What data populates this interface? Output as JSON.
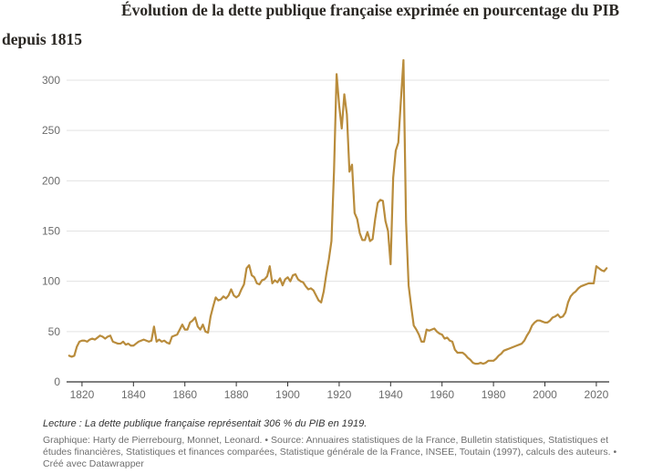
{
  "title": {
    "line1": "Évolution de la dette publique française exprimée en pourcentage du PIB",
    "line2": "depuis 1815"
  },
  "footer": {
    "reading_note": "Lecture : La dette publique française représentait 306 % du PIB en 1919.",
    "source": "Graphique: Harty de Pierrebourg, Monnet, Leonard. • Source: Annuaires statistiques de la France, Bulletin statistiques, Statistiques et études financières, Statistiques et finances comparées, Statistique générale de la France, INSEE, Toutain (1997), calculs des auteurs. • Créé avec Datawrapper"
  },
  "colors": {
    "line": "#b98c3c",
    "grid": "#e3e3e3",
    "axis": "#333333",
    "tick_text": "#6b6b6b"
  },
  "chart_data": {
    "type": "line",
    "title": "Évolution de la dette publique française exprimée en pourcentage du PIB depuis 1815",
    "xlabel": "",
    "ylabel": "",
    "xlim": [
      1814,
      2025
    ],
    "ylim": [
      0,
      300
    ],
    "xticks": [
      1820,
      1840,
      1860,
      1880,
      1900,
      1920,
      1940,
      1960,
      1980,
      2000,
      2020
    ],
    "yticks": [
      0,
      50,
      100,
      150,
      200,
      250,
      300
    ],
    "grid": "horizontal",
    "series": [
      {
        "points": [
          [
            1815,
            26
          ],
          [
            1816,
            25
          ],
          [
            1817,
            26
          ],
          [
            1818,
            35
          ],
          [
            1819,
            40
          ],
          [
            1820,
            41
          ],
          [
            1821,
            41
          ],
          [
            1822,
            40
          ],
          [
            1823,
            42
          ],
          [
            1824,
            43
          ],
          [
            1825,
            42
          ],
          [
            1826,
            44
          ],
          [
            1827,
            46
          ],
          [
            1828,
            45
          ],
          [
            1829,
            43
          ],
          [
            1830,
            45
          ],
          [
            1831,
            46
          ],
          [
            1832,
            40
          ],
          [
            1833,
            39
          ],
          [
            1834,
            38
          ],
          [
            1835,
            38
          ],
          [
            1836,
            40
          ],
          [
            1837,
            37
          ],
          [
            1838,
            38
          ],
          [
            1839,
            36
          ],
          [
            1840,
            36
          ],
          [
            1841,
            38
          ],
          [
            1842,
            40
          ],
          [
            1843,
            41
          ],
          [
            1844,
            42
          ],
          [
            1845,
            41
          ],
          [
            1846,
            40
          ],
          [
            1847,
            41
          ],
          [
            1848,
            55
          ],
          [
            1849,
            40
          ],
          [
            1850,
            42
          ],
          [
            1851,
            40
          ],
          [
            1852,
            41
          ],
          [
            1853,
            39
          ],
          [
            1854,
            38
          ],
          [
            1855,
            45
          ],
          [
            1856,
            46
          ],
          [
            1857,
            47
          ],
          [
            1858,
            52
          ],
          [
            1859,
            57
          ],
          [
            1860,
            52
          ],
          [
            1861,
            52
          ],
          [
            1862,
            59
          ],
          [
            1863,
            61
          ],
          [
            1864,
            64
          ],
          [
            1865,
            55
          ],
          [
            1866,
            52
          ],
          [
            1867,
            57
          ],
          [
            1868,
            50
          ],
          [
            1869,
            49
          ],
          [
            1870,
            65
          ],
          [
            1871,
            75
          ],
          [
            1872,
            84
          ],
          [
            1873,
            81
          ],
          [
            1874,
            82
          ],
          [
            1875,
            85
          ],
          [
            1876,
            83
          ],
          [
            1877,
            86
          ],
          [
            1878,
            92
          ],
          [
            1879,
            86
          ],
          [
            1880,
            84
          ],
          [
            1881,
            86
          ],
          [
            1882,
            92
          ],
          [
            1883,
            97
          ],
          [
            1884,
            113
          ],
          [
            1885,
            116
          ],
          [
            1886,
            106
          ],
          [
            1887,
            104
          ],
          [
            1888,
            98
          ],
          [
            1889,
            97
          ],
          [
            1890,
            101
          ],
          [
            1891,
            102
          ],
          [
            1892,
            105
          ],
          [
            1893,
            115
          ],
          [
            1894,
            98
          ],
          [
            1895,
            101
          ],
          [
            1896,
            99
          ],
          [
            1897,
            103
          ],
          [
            1898,
            96
          ],
          [
            1899,
            102
          ],
          [
            1900,
            104
          ],
          [
            1901,
            100
          ],
          [
            1902,
            106
          ],
          [
            1903,
            107
          ],
          [
            1904,
            102
          ],
          [
            1905,
            100
          ],
          [
            1906,
            99
          ],
          [
            1907,
            95
          ],
          [
            1908,
            92
          ],
          [
            1909,
            93
          ],
          [
            1910,
            91
          ],
          [
            1911,
            86
          ],
          [
            1912,
            81
          ],
          [
            1913,
            79
          ],
          [
            1914,
            90
          ],
          [
            1915,
            107
          ],
          [
            1916,
            122
          ],
          [
            1917,
            140
          ],
          [
            1918,
            210
          ],
          [
            1919,
            306
          ],
          [
            1920,
            275
          ],
          [
            1921,
            252
          ],
          [
            1922,
            286
          ],
          [
            1923,
            266
          ],
          [
            1924,
            209
          ],
          [
            1925,
            216
          ],
          [
            1926,
            168
          ],
          [
            1927,
            162
          ],
          [
            1928,
            148
          ],
          [
            1929,
            141
          ],
          [
            1930,
            141
          ],
          [
            1931,
            149
          ],
          [
            1932,
            140
          ],
          [
            1933,
            142
          ],
          [
            1934,
            162
          ],
          [
            1935,
            178
          ],
          [
            1936,
            181
          ],
          [
            1937,
            180
          ],
          [
            1938,
            160
          ],
          [
            1939,
            150
          ],
          [
            1940,
            117
          ],
          [
            1941,
            203
          ],
          [
            1942,
            230
          ],
          [
            1943,
            238
          ],
          [
            1944,
            280
          ],
          [
            1945,
            320
          ],
          [
            1946,
            160
          ],
          [
            1947,
            96
          ],
          [
            1948,
            75
          ],
          [
            1949,
            56
          ],
          [
            1950,
            52
          ],
          [
            1951,
            47
          ],
          [
            1952,
            40
          ],
          [
            1953,
            40
          ],
          [
            1954,
            52
          ],
          [
            1955,
            51
          ],
          [
            1956,
            52
          ],
          [
            1957,
            53
          ],
          [
            1958,
            50
          ],
          [
            1959,
            48
          ],
          [
            1960,
            47
          ],
          [
            1961,
            43
          ],
          [
            1962,
            44
          ],
          [
            1963,
            41
          ],
          [
            1964,
            40
          ],
          [
            1965,
            32
          ],
          [
            1966,
            29
          ],
          [
            1967,
            29
          ],
          [
            1968,
            29
          ],
          [
            1969,
            27
          ],
          [
            1970,
            24
          ],
          [
            1971,
            22
          ],
          [
            1972,
            19
          ],
          [
            1973,
            18
          ],
          [
            1974,
            18
          ],
          [
            1975,
            19
          ],
          [
            1976,
            18
          ],
          [
            1977,
            19
          ],
          [
            1978,
            21
          ],
          [
            1979,
            21
          ],
          [
            1980,
            21
          ],
          [
            1981,
            23
          ],
          [
            1982,
            26
          ],
          [
            1983,
            28
          ],
          [
            1984,
            31
          ],
          [
            1985,
            32
          ],
          [
            1986,
            33
          ],
          [
            1987,
            34
          ],
          [
            1988,
            35
          ],
          [
            1989,
            36
          ],
          [
            1990,
            37
          ],
          [
            1991,
            38
          ],
          [
            1992,
            41
          ],
          [
            1993,
            46
          ],
          [
            1994,
            50
          ],
          [
            1995,
            56
          ],
          [
            1996,
            59
          ],
          [
            1997,
            61
          ],
          [
            1998,
            61
          ],
          [
            1999,
            60
          ],
          [
            2000,
            59
          ],
          [
            2001,
            59
          ],
          [
            2002,
            61
          ],
          [
            2003,
            64
          ],
          [
            2004,
            65
          ],
          [
            2005,
            67
          ],
          [
            2006,
            64
          ],
          [
            2007,
            65
          ],
          [
            2008,
            69
          ],
          [
            2009,
            79
          ],
          [
            2010,
            85
          ],
          [
            2011,
            88
          ],
          [
            2012,
            90
          ],
          [
            2013,
            93
          ],
          [
            2014,
            95
          ],
          [
            2015,
            96
          ],
          [
            2016,
            97
          ],
          [
            2017,
            98
          ],
          [
            2018,
            98
          ],
          [
            2019,
            98
          ],
          [
            2020,
            115
          ],
          [
            2021,
            113
          ],
          [
            2022,
            111
          ],
          [
            2023,
            110
          ],
          [
            2024,
            113
          ]
        ]
      }
    ]
  }
}
